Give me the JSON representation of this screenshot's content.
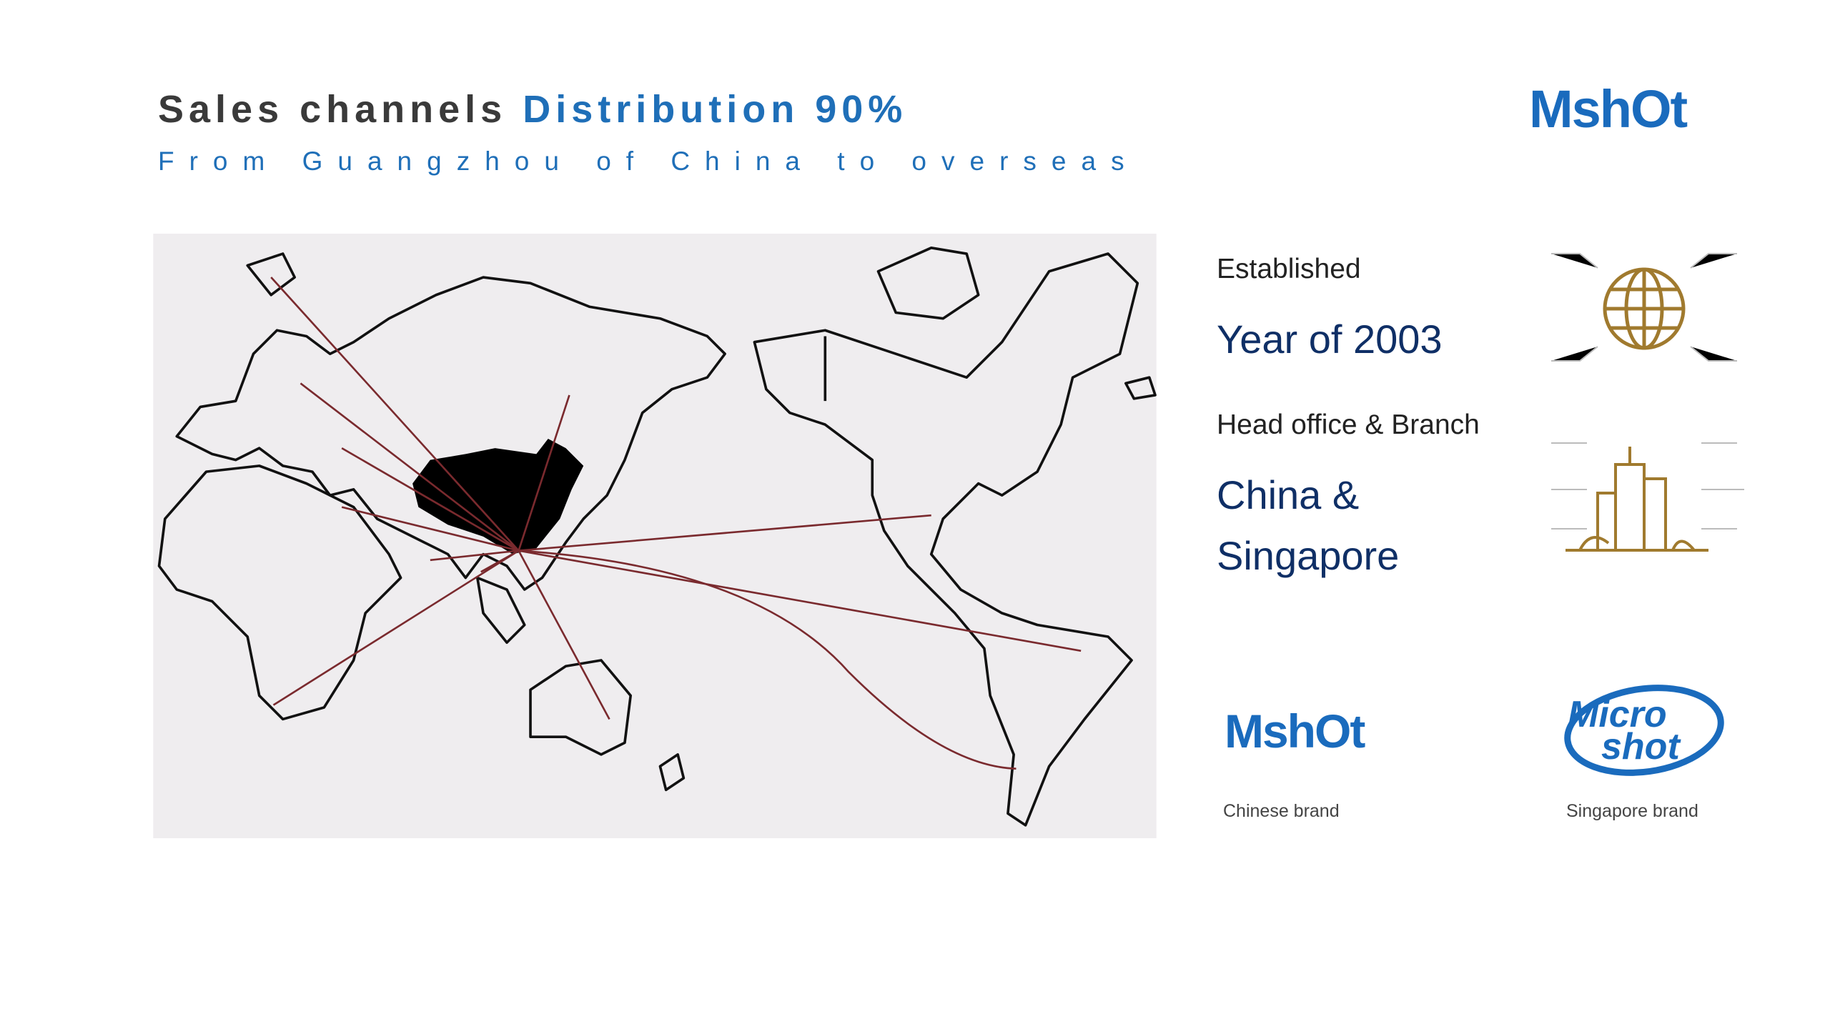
{
  "header": {
    "title_part1": "Sales channels",
    "title_part2": "Distribution 90%",
    "subtitle": "From Guangzhou of China to overseas",
    "logo": "MshOt"
  },
  "info": {
    "items": [
      {
        "label": "Established",
        "value": "Year of 2003"
      },
      {
        "label": "Head office & Branch",
        "value": "China &",
        "value_line2": "Singapore"
      }
    ]
  },
  "brands": [
    {
      "logo": "MshOt",
      "caption": "Chinese brand"
    },
    {
      "logo_line1": "Micro",
      "logo_line2": "shot",
      "caption": "Singapore brand"
    }
  ]
}
